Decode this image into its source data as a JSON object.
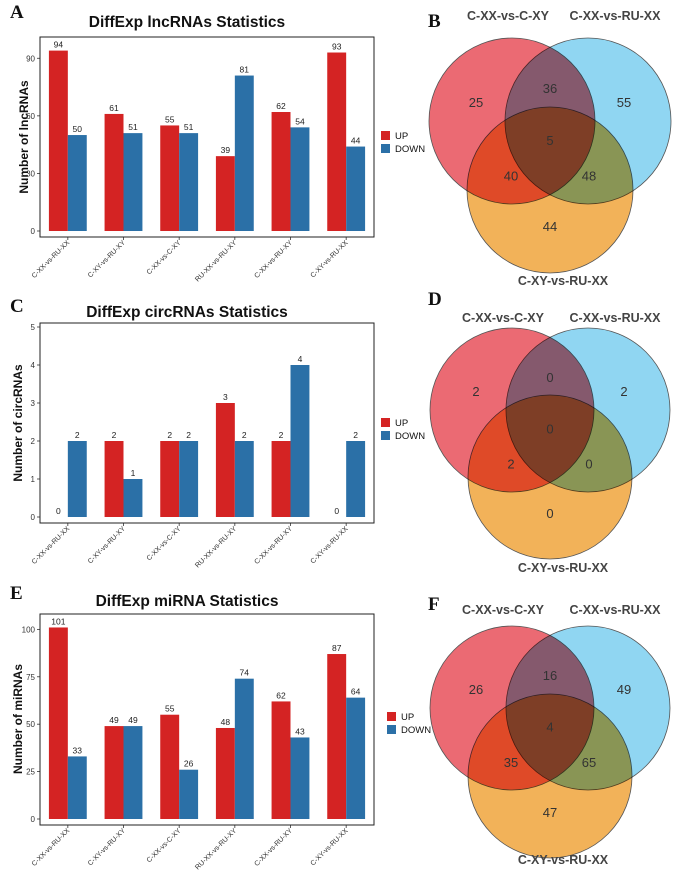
{
  "legend": {
    "up": "UP",
    "down": "DOWN"
  },
  "colors": {
    "up": "#d42323",
    "down": "#2b70a7"
  },
  "venn_colors": {
    "set1": "#e8505b",
    "set2": "#7ccff0",
    "set3": "#f0a53c"
  },
  "chart_data": [
    {
      "panel": "A",
      "type": "bar",
      "title": "DiffExp lncRNAs Statistics",
      "xlabel": "",
      "ylabel": "Number of lncRNAs",
      "categories": [
        "C-XX-vs-RU-XX",
        "C-XY-vs-RU-XY",
        "C-XX-vs-C-XY",
        "RU-XX-vs-RU-XY",
        "C-XX-vs-RU-XY",
        "C-XY-vs-RU-XX"
      ],
      "series": [
        {
          "name": "UP",
          "values": [
            94,
            61,
            55,
            39,
            62,
            93
          ]
        },
        {
          "name": "DOWN",
          "values": [
            50,
            51,
            51,
            81,
            54,
            44
          ]
        }
      ],
      "yticks": [
        0,
        30,
        60,
        90
      ],
      "ylim": [
        0,
        99
      ]
    },
    {
      "panel": "C",
      "type": "bar",
      "title": "DiffExp circRNAs Statistics",
      "xlabel": "",
      "ylabel": "Number of circRNAs",
      "categories": [
        "C-XX-vs-RU-XX",
        "C-XY-vs-RU-XY",
        "C-XX-vs-C-XY",
        "RU-XX-vs-RU-XY",
        "C-XX-vs-RU-XY",
        "C-XY-vs-RU-XX"
      ],
      "series": [
        {
          "name": "UP",
          "values": [
            0,
            2,
            2,
            3,
            2,
            0
          ]
        },
        {
          "name": "DOWN",
          "values": [
            2,
            1,
            2,
            2,
            4,
            2
          ]
        }
      ],
      "yticks": [
        0,
        1,
        2,
        3,
        4,
        5
      ],
      "ylim": [
        0,
        5
      ]
    },
    {
      "panel": "E",
      "type": "bar",
      "title": "DiffExp miRNA Statistics",
      "xlabel": "",
      "ylabel": "Number of miRNAs",
      "categories": [
        "C-XX-vs-RU-XX",
        "C-XY-vs-RU-XY",
        "C-XX-vs-C-XY",
        "RU-XX-vs-RU-XY",
        "C-XX-vs-RU-XY",
        "C-XY-vs-RU-XX"
      ],
      "series": [
        {
          "name": "UP",
          "values": [
            101,
            49,
            55,
            48,
            62,
            87
          ]
        },
        {
          "name": "DOWN",
          "values": [
            33,
            49,
            26,
            74,
            43,
            64
          ]
        }
      ],
      "yticks": [
        0,
        25,
        50,
        75,
        100
      ],
      "ylim": [
        0,
        106
      ]
    },
    {
      "panel": "B",
      "type": "venn",
      "sets": [
        "C-XX-vs-C-XY",
        "C-XX-vs-RU-XX",
        "C-XY-vs-RU-XX"
      ],
      "regions": {
        "only1": 25,
        "only2": 55,
        "only3": 44,
        "r12": 36,
        "r13": 40,
        "r23": 48,
        "r123": 5
      }
    },
    {
      "panel": "D",
      "type": "venn",
      "sets": [
        "C-XX-vs-C-XY",
        "C-XX-vs-RU-XX",
        "C-XY-vs-RU-XX"
      ],
      "regions": {
        "only1": 2,
        "only2": 2,
        "only3": 0,
        "r12": 0,
        "r13": 2,
        "r23": 0,
        "r123": 0
      }
    },
    {
      "panel": "F",
      "type": "venn",
      "sets": [
        "C-XX-vs-C-XY",
        "C-XX-vs-RU-XX",
        "C-XY-vs-RU-XX"
      ],
      "regions": {
        "only1": 26,
        "only2": 49,
        "only3": 47,
        "r12": 16,
        "r13": 35,
        "r23": 65,
        "r123": 4
      }
    }
  ]
}
